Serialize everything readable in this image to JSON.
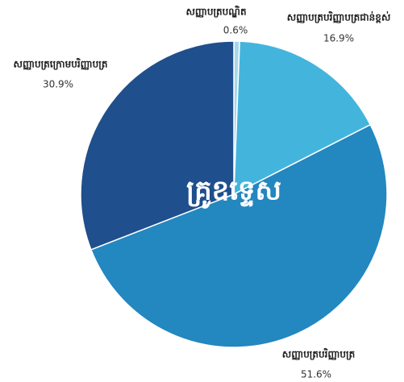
{
  "chart_data": {
    "type": "pie",
    "center_label": "គ្រូឧទ្ទេស",
    "categories": [
      "សញ្ញាបត្របណ្ឌិត",
      "សញ្ញាបត្របរិញ្ញាបត្រជាន់ខ្ពស់",
      "សញ្ញាបត្របរិញ្ញាបត្រ",
      "សញ្ញាបត្រក្រោមបរិញ្ញាបត្រ"
    ],
    "values": [
      0.6,
      16.9,
      51.6,
      30.9
    ],
    "value_labels": [
      "0.6%",
      "16.9%",
      "51.6%",
      "30.9%"
    ],
    "colors": [
      "#a6d8ec",
      "#43b5dd",
      "#2387c0",
      "#1f4f8c"
    ]
  }
}
